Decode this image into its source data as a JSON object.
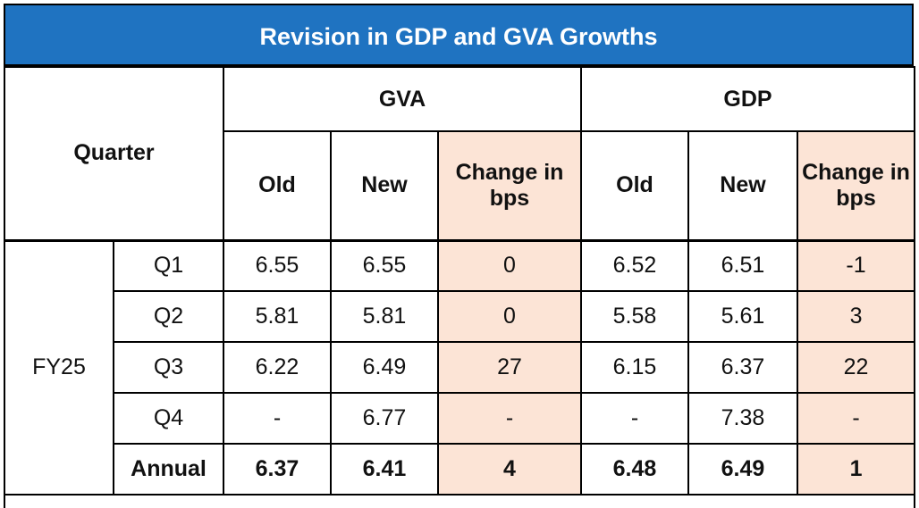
{
  "title": "Revision in GDP and GVA Growths",
  "header": {
    "quarter": "Quarter",
    "gva": "GVA",
    "gdp": "GDP",
    "sub": {
      "old": "Old",
      "new": "New",
      "change_gva": "Change in bps",
      "change_gdp": "Change in bps"
    }
  },
  "fiscal_year": "FY25",
  "rows": [
    {
      "quarter": "Q1",
      "gva_old": "6.55",
      "gva_new": "6.55",
      "gva_chg": "0",
      "gdp_old": "6.52",
      "gdp_new": "6.51",
      "gdp_chg": "-1"
    },
    {
      "quarter": "Q2",
      "gva_old": "5.81",
      "gva_new": "5.81",
      "gva_chg": "0",
      "gdp_old": "5.58",
      "gdp_new": "5.61",
      "gdp_chg": "3"
    },
    {
      "quarter": "Q3",
      "gva_old": "6.22",
      "gva_new": "6.49",
      "gva_chg": "27",
      "gdp_old": "6.15",
      "gdp_new": "6.37",
      "gdp_chg": "22"
    },
    {
      "quarter": "Q4",
      "gva_old": "-",
      "gva_new": "6.77",
      "gva_chg": "-",
      "gdp_old": "-",
      "gdp_new": "7.38",
      "gdp_chg": "-"
    },
    {
      "quarter": "Annual",
      "gva_old": "6.37",
      "gva_new": "6.41",
      "gva_chg": "4",
      "gdp_old": "6.48",
      "gdp_new": "6.49",
      "gdp_chg": "1"
    }
  ],
  "colors": {
    "title_bg": "#1f73c1",
    "highlight": "#fce4d6"
  }
}
